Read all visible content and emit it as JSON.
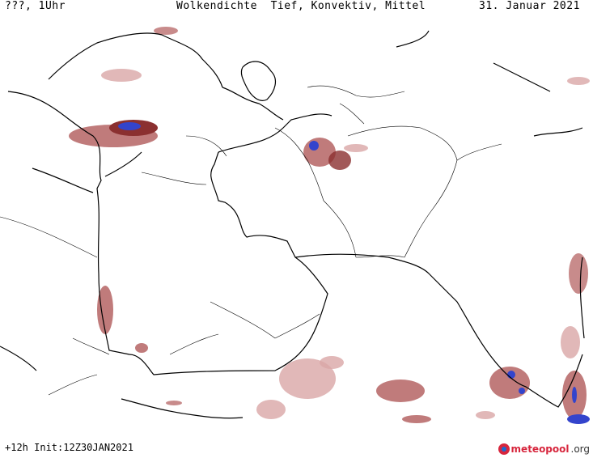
{
  "header": {
    "left": "???, 1Uhr",
    "center": "Wolkendichte  Tief, Konvektiv, Mittel",
    "right": "31. Januar 2021"
  },
  "footer": {
    "run": "+12h Init:12Z30JAN2021",
    "logo_brand": "meteopool",
    "logo_suffix": ".org"
  },
  "colors": {
    "cloud_light": "#d9a6a6",
    "cloud_mid": "#b05a5a",
    "cloud_dark": "#8b3030",
    "cloud_convective": "#3344cc",
    "coast": "#000000",
    "border": "#000000",
    "logo_red": "#d7263d",
    "logo_blue": "#1b6ad1"
  }
}
